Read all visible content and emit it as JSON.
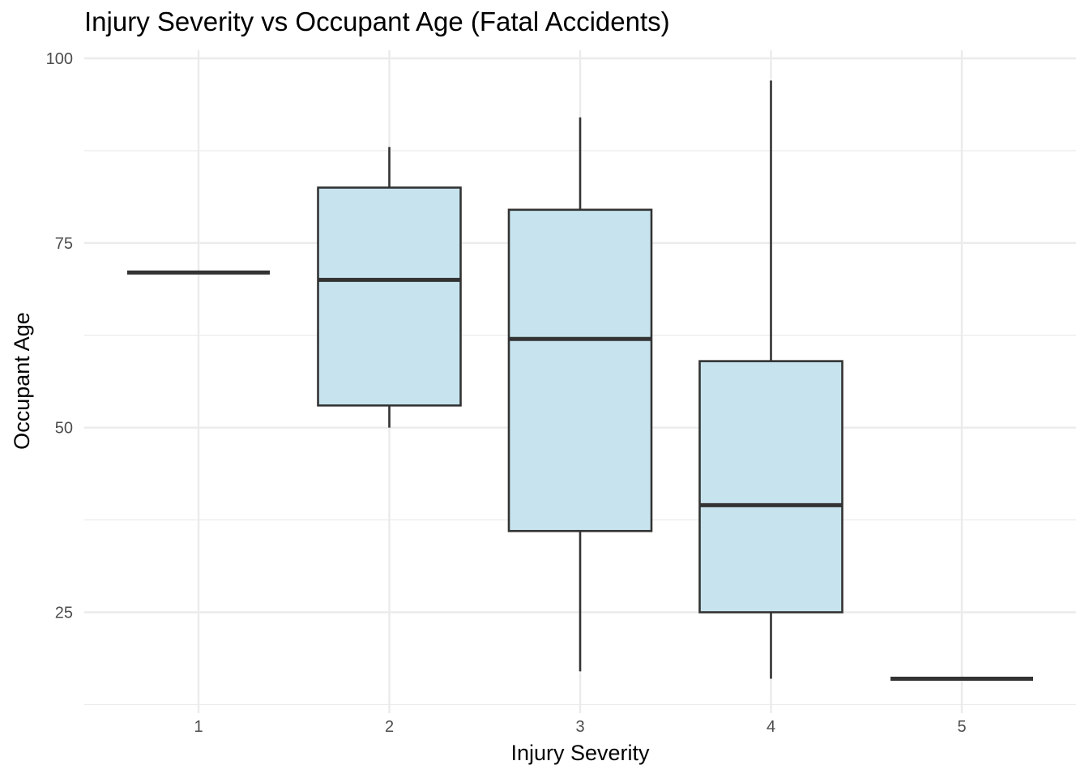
{
  "chart_data": {
    "type": "boxplot",
    "title": "Injury Severity vs Occupant Age (Fatal Accidents)",
    "xlabel": "Injury Severity",
    "ylabel": "Occupant Age",
    "categories": [
      "1",
      "2",
      "3",
      "4",
      "5"
    ],
    "ylim": [
      12.5,
      100
    ],
    "yticks": [
      25,
      50,
      75,
      100
    ],
    "grid": true,
    "legend": "none",
    "fill_color": "#c6e3ee",
    "line_color": "#333333",
    "boxes": [
      {
        "category": "1",
        "min": 71,
        "q1": 71,
        "median": 71,
        "q3": 71,
        "max": 71
      },
      {
        "category": "2",
        "min": 50,
        "q1": 53,
        "median": 70,
        "q3": 82.5,
        "max": 88
      },
      {
        "category": "3",
        "min": 17,
        "q1": 36,
        "median": 62,
        "q3": 79.5,
        "max": 92
      },
      {
        "category": "4",
        "min": 16,
        "q1": 25,
        "median": 39.5,
        "q3": 59,
        "max": 97
      },
      {
        "category": "5",
        "min": 16,
        "q1": 16,
        "median": 16,
        "q3": 16,
        "max": 16
      }
    ]
  }
}
